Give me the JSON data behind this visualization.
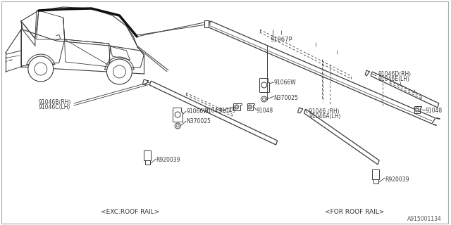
{
  "bg_color": "#ffffff",
  "lc": "#3a3a3a",
  "figsize": [
    6.4,
    3.2
  ],
  "dpi": 100,
  "xlim": [
    0,
    640
  ],
  "ylim": [
    0,
    320
  ],
  "diagram_id": "A915001134",
  "footer_left": "<EXC.ROOF RAIL>",
  "footer_right": "<FOR ROOF RAIL>",
  "label_91067P": "91067P",
  "label_91066W": "91066W",
  "label_N370025": "N370025",
  "label_91049": "91049",
  "label_91048": "91048",
  "label_91046B": "91046B⟨RH⟩",
  "label_91046C": "91046C⟨LH⟩",
  "label_91046": "91046 ⟨RH⟩",
  "label_91046A": "91046A⟨LH⟩",
  "label_91046D": "91046D⟨RH⟩",
  "label_91046E": "91046E⟨LH⟩",
  "label_R920039": "R920039"
}
